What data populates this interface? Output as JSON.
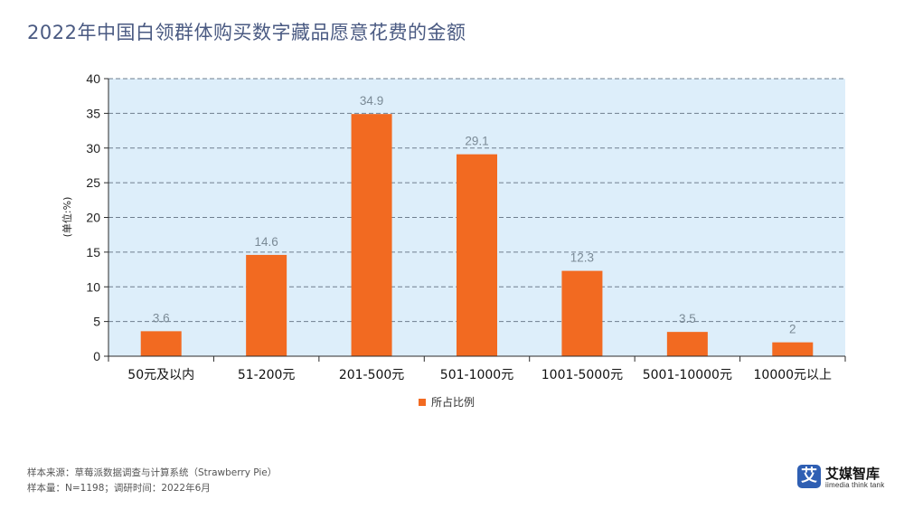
{
  "title": "2022年中国白领群体购买数字藏品愿意花费的金额",
  "footer": {
    "source": "样本来源：草莓派数据调查与计算系统（Strawberry Pie）",
    "sample": "样本量：N=1198；调研时间：2022年6月"
  },
  "logo": {
    "badge": "艾",
    "name": "艾媒智库",
    "sub": "iimedia think tank"
  },
  "colors": {
    "bar": "#f26a21",
    "plot_bg": "#ddeefa",
    "grid": "#6f7f8f",
    "axis": "#2b2b2b",
    "label": "#7a8a96"
  },
  "chart_data": {
    "type": "bar",
    "categories": [
      "50元及以内",
      "51-200元",
      "201-500元",
      "501-1000元",
      "1001-5000元",
      "5001-10000元",
      "10000元以上"
    ],
    "series": [
      {
        "name": "所占比例",
        "values": [
          3.6,
          14.6,
          34.9,
          29.1,
          12.3,
          3.5,
          2
        ]
      }
    ],
    "data_labels": [
      "3.6",
      "14.6",
      "34.9",
      "29.1",
      "12.3",
      "3.5",
      "2"
    ],
    "ylabel": "(单位:%)",
    "ylim": [
      0,
      40
    ],
    "yticks": [
      0,
      5,
      10,
      15,
      20,
      25,
      30,
      35,
      40
    ],
    "grid": true,
    "legend_position": "bottom-center"
  }
}
